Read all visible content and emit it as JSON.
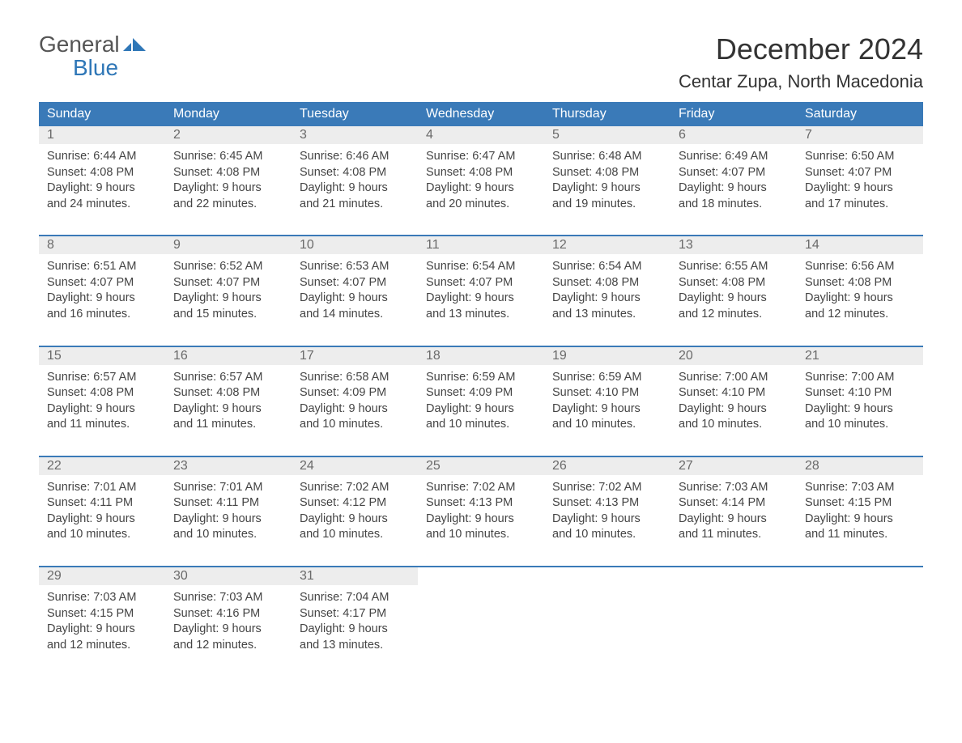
{
  "logo": {
    "word1": "General",
    "word2": "Blue"
  },
  "title": "December 2024",
  "location": "Centar Zupa, North Macedonia",
  "colors": {
    "header_bg": "#3a7ab8",
    "header_text": "#ffffff",
    "daynum_bg": "#ededed",
    "daynum_text": "#6a6a6a",
    "body_text": "#444444",
    "week_border": "#3a7ab8",
    "logo_gray": "#555555",
    "logo_blue": "#2f77b7",
    "page_bg": "#ffffff"
  },
  "typography": {
    "title_fontsize": 36,
    "location_fontsize": 22,
    "header_fontsize": 16,
    "daynum_fontsize": 16,
    "cell_fontsize": 14.5,
    "logo_fontsize": 28
  },
  "weekdays": [
    "Sunday",
    "Monday",
    "Tuesday",
    "Wednesday",
    "Thursday",
    "Friday",
    "Saturday"
  ],
  "labels": {
    "sunrise": "Sunrise:",
    "sunset": "Sunset:",
    "daylight": "Daylight:"
  },
  "weeks": [
    [
      {
        "day": "1",
        "sunrise": "6:44 AM",
        "sunset": "4:08 PM",
        "dl1": "9 hours",
        "dl2": "and 24 minutes."
      },
      {
        "day": "2",
        "sunrise": "6:45 AM",
        "sunset": "4:08 PM",
        "dl1": "9 hours",
        "dl2": "and 22 minutes."
      },
      {
        "day": "3",
        "sunrise": "6:46 AM",
        "sunset": "4:08 PM",
        "dl1": "9 hours",
        "dl2": "and 21 minutes."
      },
      {
        "day": "4",
        "sunrise": "6:47 AM",
        "sunset": "4:08 PM",
        "dl1": "9 hours",
        "dl2": "and 20 minutes."
      },
      {
        "day": "5",
        "sunrise": "6:48 AM",
        "sunset": "4:08 PM",
        "dl1": "9 hours",
        "dl2": "and 19 minutes."
      },
      {
        "day": "6",
        "sunrise": "6:49 AM",
        "sunset": "4:07 PM",
        "dl1": "9 hours",
        "dl2": "and 18 minutes."
      },
      {
        "day": "7",
        "sunrise": "6:50 AM",
        "sunset": "4:07 PM",
        "dl1": "9 hours",
        "dl2": "and 17 minutes."
      }
    ],
    [
      {
        "day": "8",
        "sunrise": "6:51 AM",
        "sunset": "4:07 PM",
        "dl1": "9 hours",
        "dl2": "and 16 minutes."
      },
      {
        "day": "9",
        "sunrise": "6:52 AM",
        "sunset": "4:07 PM",
        "dl1": "9 hours",
        "dl2": "and 15 minutes."
      },
      {
        "day": "10",
        "sunrise": "6:53 AM",
        "sunset": "4:07 PM",
        "dl1": "9 hours",
        "dl2": "and 14 minutes."
      },
      {
        "day": "11",
        "sunrise": "6:54 AM",
        "sunset": "4:07 PM",
        "dl1": "9 hours",
        "dl2": "and 13 minutes."
      },
      {
        "day": "12",
        "sunrise": "6:54 AM",
        "sunset": "4:08 PM",
        "dl1": "9 hours",
        "dl2": "and 13 minutes."
      },
      {
        "day": "13",
        "sunrise": "6:55 AM",
        "sunset": "4:08 PM",
        "dl1": "9 hours",
        "dl2": "and 12 minutes."
      },
      {
        "day": "14",
        "sunrise": "6:56 AM",
        "sunset": "4:08 PM",
        "dl1": "9 hours",
        "dl2": "and 12 minutes."
      }
    ],
    [
      {
        "day": "15",
        "sunrise": "6:57 AM",
        "sunset": "4:08 PM",
        "dl1": "9 hours",
        "dl2": "and 11 minutes."
      },
      {
        "day": "16",
        "sunrise": "6:57 AM",
        "sunset": "4:08 PM",
        "dl1": "9 hours",
        "dl2": "and 11 minutes."
      },
      {
        "day": "17",
        "sunrise": "6:58 AM",
        "sunset": "4:09 PM",
        "dl1": "9 hours",
        "dl2": "and 10 minutes."
      },
      {
        "day": "18",
        "sunrise": "6:59 AM",
        "sunset": "4:09 PM",
        "dl1": "9 hours",
        "dl2": "and 10 minutes."
      },
      {
        "day": "19",
        "sunrise": "6:59 AM",
        "sunset": "4:10 PM",
        "dl1": "9 hours",
        "dl2": "and 10 minutes."
      },
      {
        "day": "20",
        "sunrise": "7:00 AM",
        "sunset": "4:10 PM",
        "dl1": "9 hours",
        "dl2": "and 10 minutes."
      },
      {
        "day": "21",
        "sunrise": "7:00 AM",
        "sunset": "4:10 PM",
        "dl1": "9 hours",
        "dl2": "and 10 minutes."
      }
    ],
    [
      {
        "day": "22",
        "sunrise": "7:01 AM",
        "sunset": "4:11 PM",
        "dl1": "9 hours",
        "dl2": "and 10 minutes."
      },
      {
        "day": "23",
        "sunrise": "7:01 AM",
        "sunset": "4:11 PM",
        "dl1": "9 hours",
        "dl2": "and 10 minutes."
      },
      {
        "day": "24",
        "sunrise": "7:02 AM",
        "sunset": "4:12 PM",
        "dl1": "9 hours",
        "dl2": "and 10 minutes."
      },
      {
        "day": "25",
        "sunrise": "7:02 AM",
        "sunset": "4:13 PM",
        "dl1": "9 hours",
        "dl2": "and 10 minutes."
      },
      {
        "day": "26",
        "sunrise": "7:02 AM",
        "sunset": "4:13 PM",
        "dl1": "9 hours",
        "dl2": "and 10 minutes."
      },
      {
        "day": "27",
        "sunrise": "7:03 AM",
        "sunset": "4:14 PM",
        "dl1": "9 hours",
        "dl2": "and 11 minutes."
      },
      {
        "day": "28",
        "sunrise": "7:03 AM",
        "sunset": "4:15 PM",
        "dl1": "9 hours",
        "dl2": "and 11 minutes."
      }
    ],
    [
      {
        "day": "29",
        "sunrise": "7:03 AM",
        "sunset": "4:15 PM",
        "dl1": "9 hours",
        "dl2": "and 12 minutes."
      },
      {
        "day": "30",
        "sunrise": "7:03 AM",
        "sunset": "4:16 PM",
        "dl1": "9 hours",
        "dl2": "and 12 minutes."
      },
      {
        "day": "31",
        "sunrise": "7:04 AM",
        "sunset": "4:17 PM",
        "dl1": "9 hours",
        "dl2": "and 13 minutes."
      },
      null,
      null,
      null,
      null
    ]
  ]
}
